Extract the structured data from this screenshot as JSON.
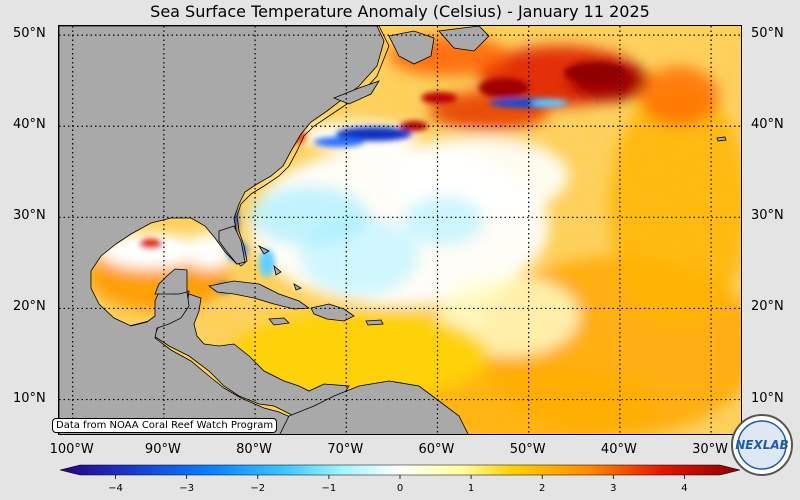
{
  "title": "Sea Surface Temperature Anomaly (Celsius) - January 11 2025",
  "credit": "Data from NOAA Coral Reef Watch Program",
  "logo": {
    "text": "NEXLAB"
  },
  "map": {
    "lon_range": [
      -101.5,
      -26.5
    ],
    "lat_range": [
      6,
      51
    ],
    "lat_ticks": [
      {
        "value": 50,
        "label": "50°N"
      },
      {
        "value": 40,
        "label": "40°N"
      },
      {
        "value": 30,
        "label": "30°N"
      },
      {
        "value": 20,
        "label": "20°N"
      },
      {
        "value": 10,
        "label": "10°N"
      }
    ],
    "lon_ticks": [
      {
        "value": -100,
        "label": "100°W"
      },
      {
        "value": -90,
        "label": "90°W"
      },
      {
        "value": -80,
        "label": "80°W"
      },
      {
        "value": -70,
        "label": "70°W"
      },
      {
        "value": -60,
        "label": "60°W"
      },
      {
        "value": -50,
        "label": "50°W"
      },
      {
        "value": -40,
        "label": "40°W"
      },
      {
        "value": -30,
        "label": "30°W"
      }
    ],
    "land_color": "#a9a9a9",
    "ocean_base_color": "#fdd267"
  },
  "colorbar": {
    "min": -4.5,
    "max": 4.5,
    "ticks": [
      {
        "value": -4,
        "label": "−4"
      },
      {
        "value": -3,
        "label": "−3"
      },
      {
        "value": -2,
        "label": "−2"
      },
      {
        "value": -1,
        "label": "−1"
      },
      {
        "value": 0,
        "label": "0"
      },
      {
        "value": 1,
        "label": "1"
      },
      {
        "value": 2,
        "label": "2"
      },
      {
        "value": 3,
        "label": "3"
      },
      {
        "value": 4,
        "label": "4"
      }
    ],
    "stops": [
      {
        "value": -4.5,
        "color": "#2a0080"
      },
      {
        "value": -3.5,
        "color": "#1a3cd0"
      },
      {
        "value": -2.5,
        "color": "#0a80ff"
      },
      {
        "value": -1.5,
        "color": "#3ec8ff"
      },
      {
        "value": -0.8,
        "color": "#9ef4ff"
      },
      {
        "value": 0,
        "color": "#ffffff"
      },
      {
        "value": 0.8,
        "color": "#ffffa0"
      },
      {
        "value": 1.5,
        "color": "#ffd000"
      },
      {
        "value": 2.5,
        "color": "#ff8a00"
      },
      {
        "value": 3.5,
        "color": "#e31400"
      },
      {
        "value": 4.5,
        "color": "#8a0000"
      }
    ]
  }
}
